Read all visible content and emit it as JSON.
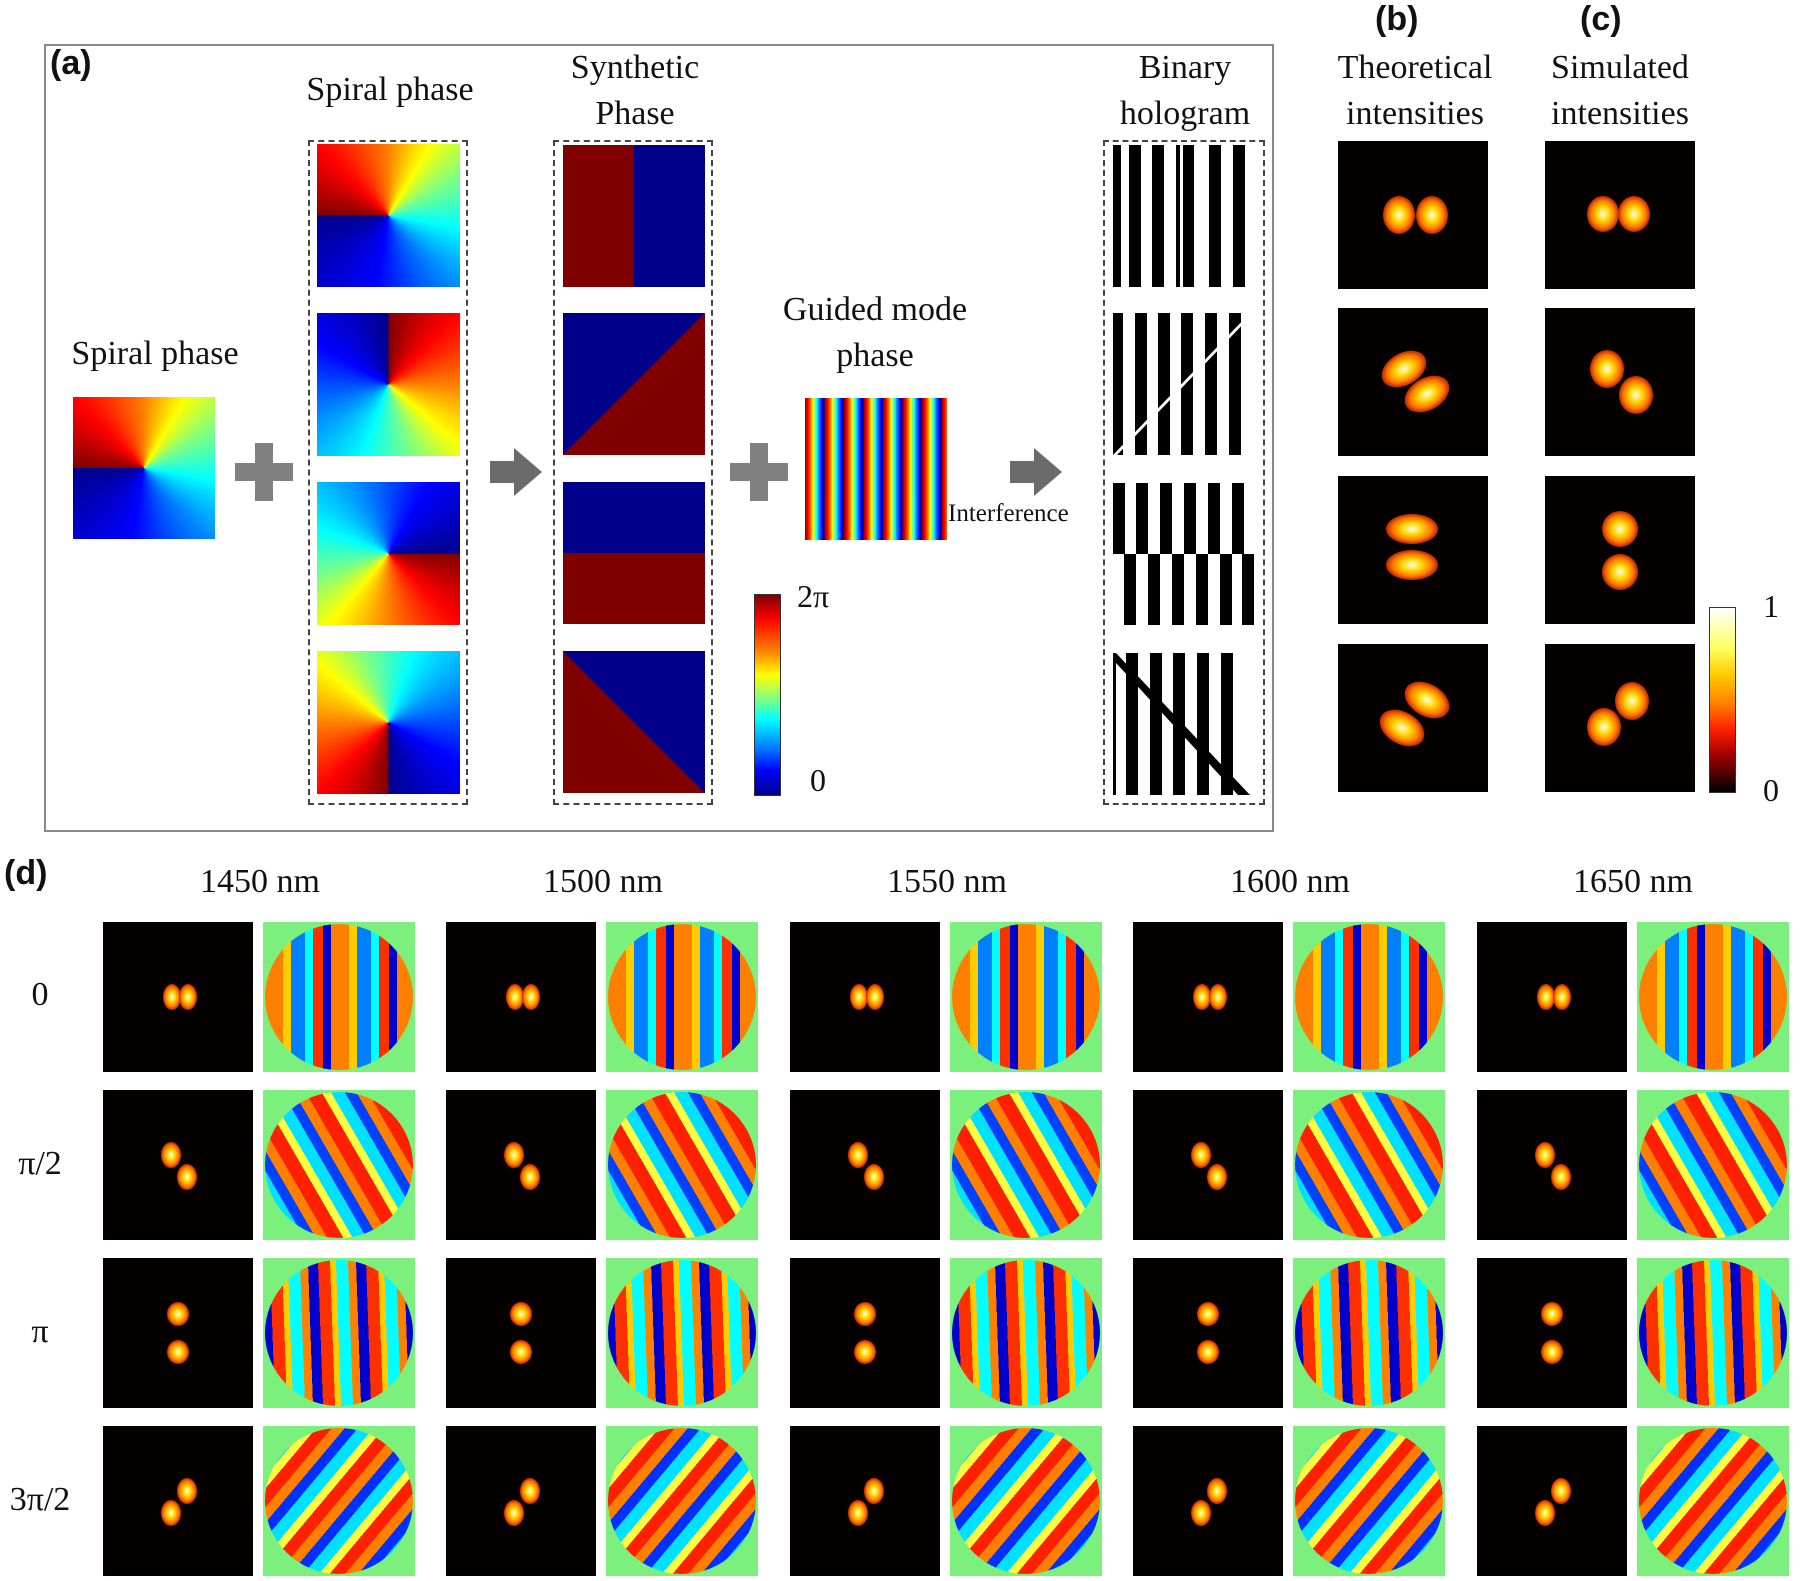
{
  "panels": {
    "a": {
      "label": "(a)",
      "spiral_phase_left_title": "Spiral phase",
      "spiral_phase_column_title": "Spiral phase",
      "synthetic_phase_title_1": "Synthetic",
      "synthetic_phase_title_2": "Phase",
      "guided_mode_title_1": "Guided mode",
      "guided_mode_title_2": "phase",
      "interference_label": "Interference",
      "binary_hologram_title_1": "Binary",
      "binary_hologram_title_2": "hologram",
      "phase_colorbar": {
        "max_label": "2π",
        "min_label": "0",
        "colormap": "jet"
      }
    },
    "b": {
      "label": "(b)",
      "title_1": "Theoretical",
      "title_2": "intensities"
    },
    "c": {
      "label": "(c)",
      "title_1": "Simulated",
      "title_2": "intensities",
      "intensity_colorbar": {
        "max_label": "1",
        "min_label": "0",
        "colormap": "hot"
      }
    },
    "d": {
      "label": "(d)",
      "wavelengths": [
        "1450 nm",
        "1500 nm",
        "1550 nm",
        "1600 nm",
        "1650 nm"
      ],
      "rotation_rows": [
        "0",
        "π/2",
        "π",
        "3π/2"
      ]
    }
  },
  "colors": {
    "jet_dark_red": "#800000",
    "jet_dark_blue": "#00008b",
    "phase_background_green": "#7cf07c",
    "arrow_gray": "#6b6b6b",
    "plus_gray": "#808080",
    "frame_gray": "#888888"
  }
}
